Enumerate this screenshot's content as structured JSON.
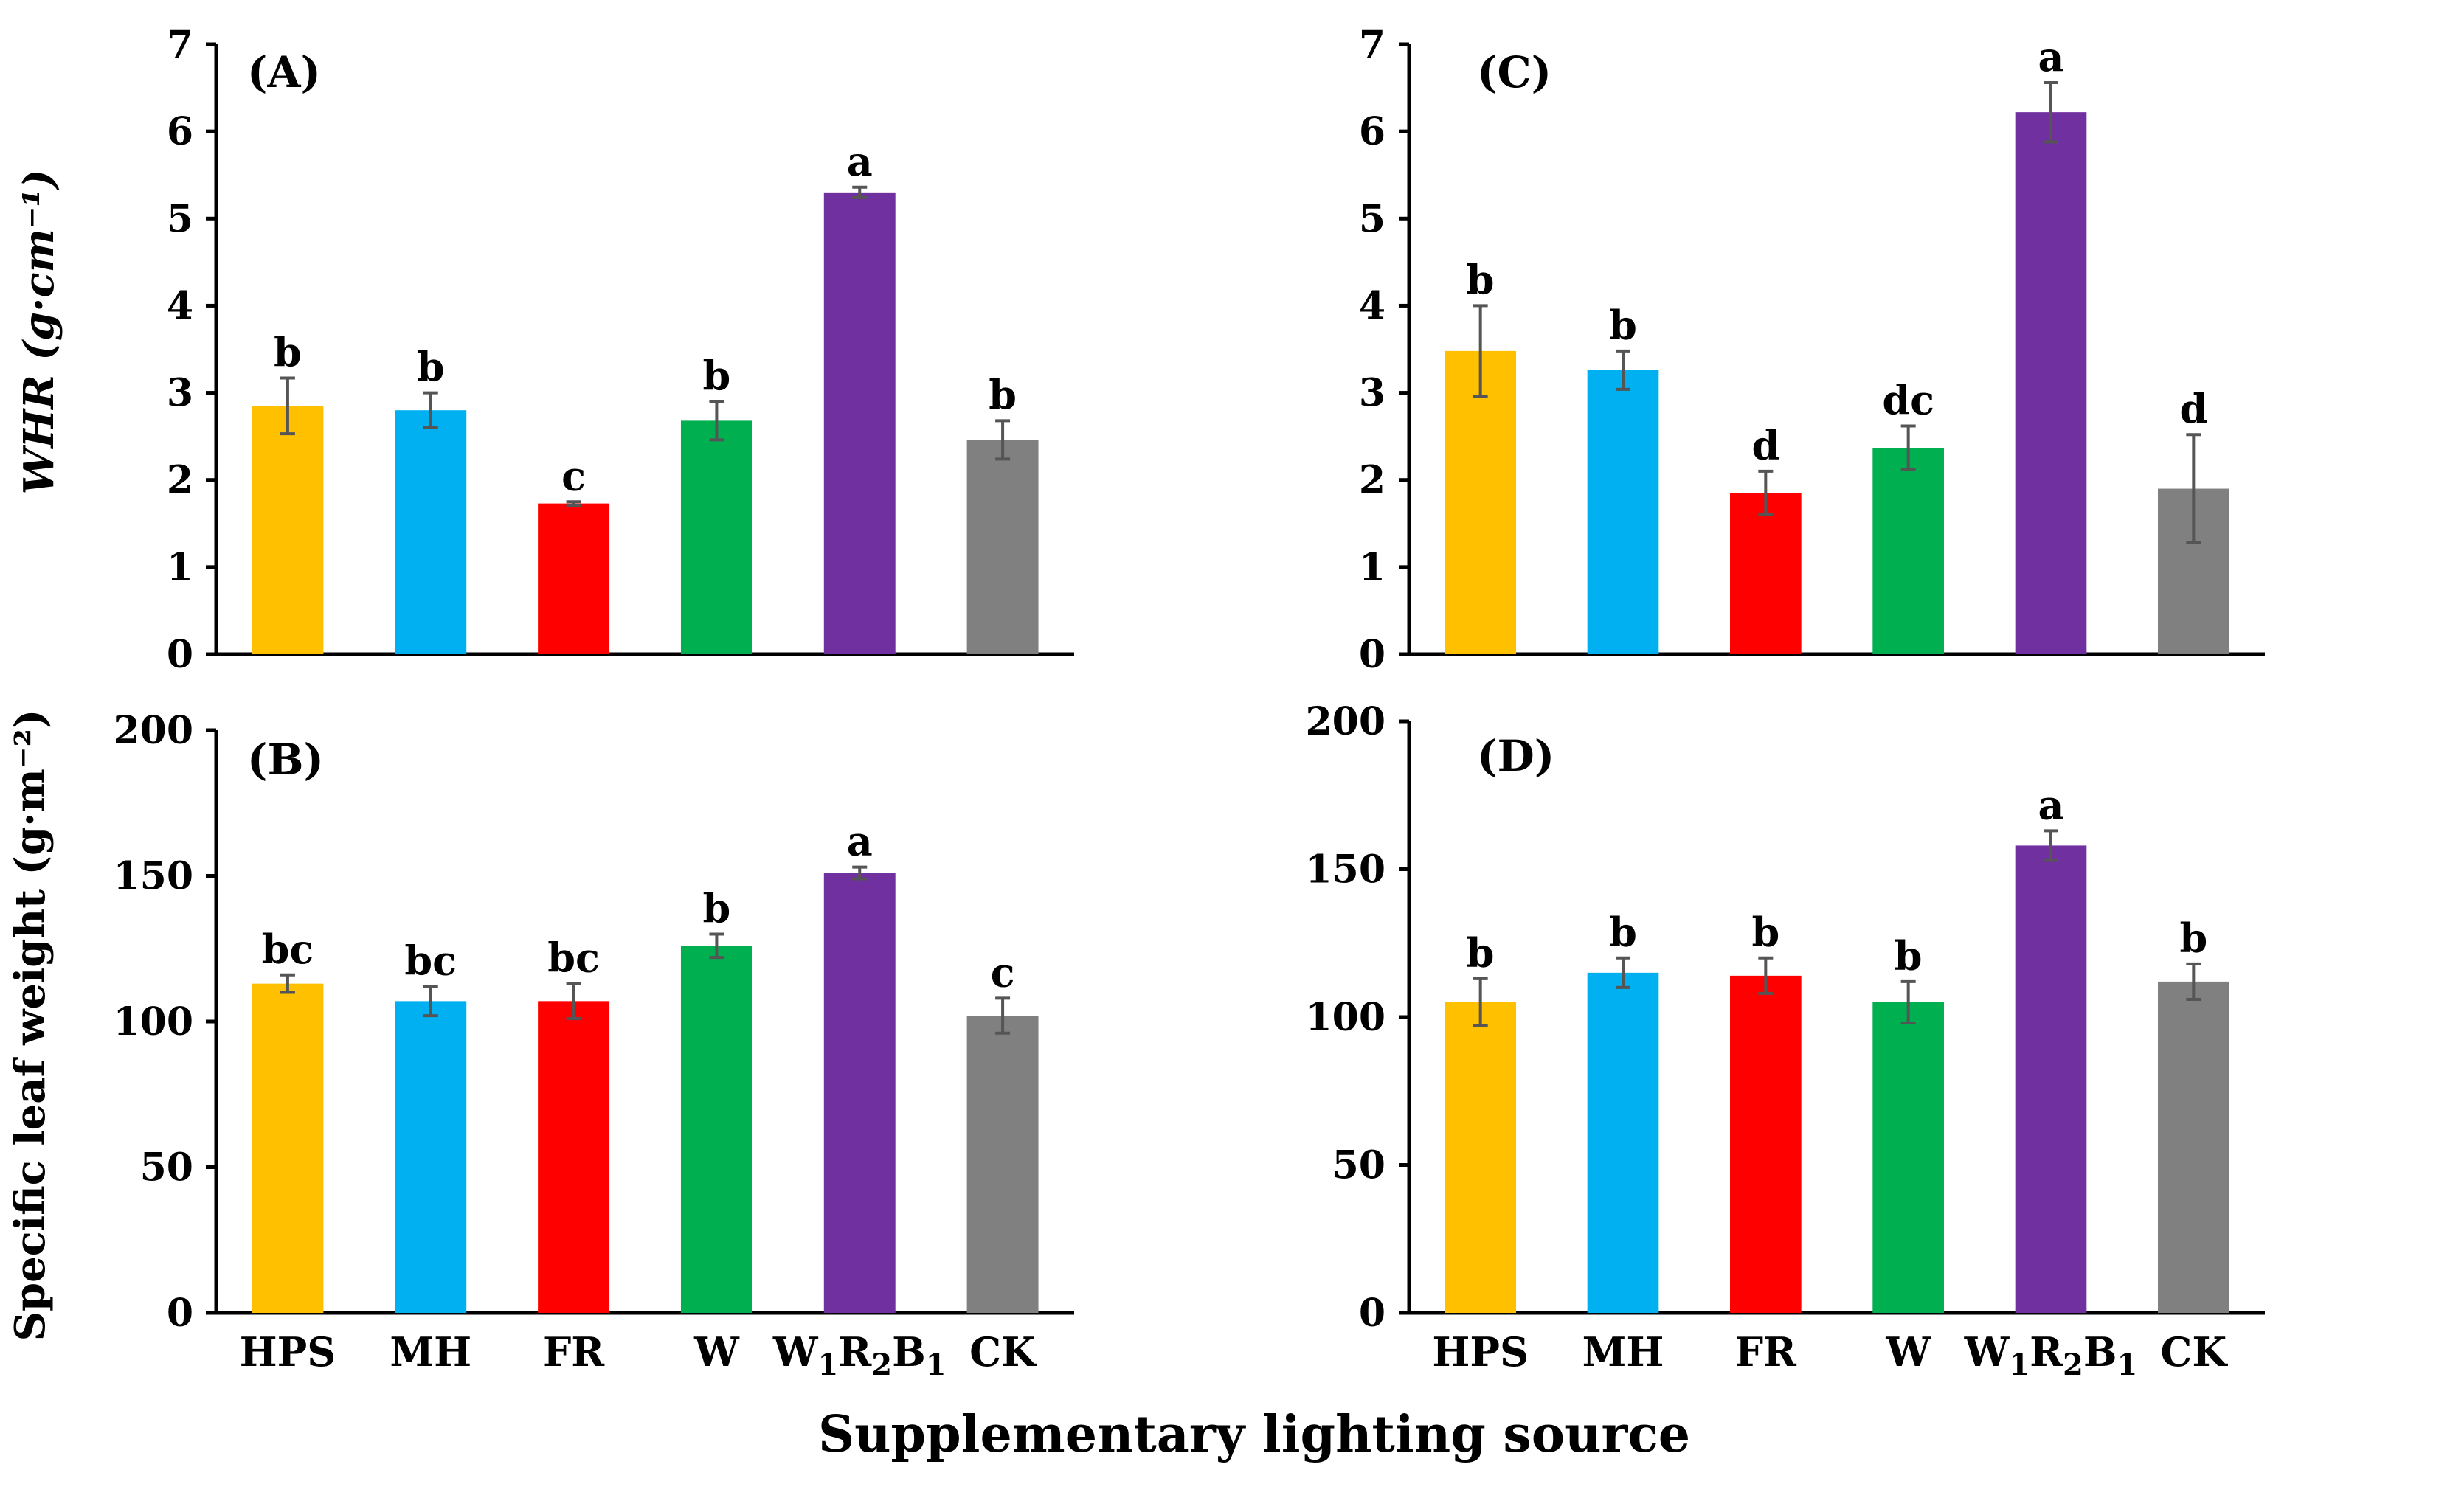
{
  "figure": {
    "xlabel": "Supplementary lighting source",
    "categories": [
      "HPS",
      "MH",
      "FR",
      "W",
      "W1R2B1",
      "CK"
    ],
    "colors": [
      "#FFC000",
      "#00B0F0",
      "#FF0000",
      "#00B050",
      "#7030A0",
      "#808080"
    ],
    "error_bar_color": "#555555"
  },
  "ylabels": {
    "top": "WHR (g·cm⁻¹)",
    "bottom": "Specific leaf weight (g·m⁻²)"
  },
  "chart_data": [
    {
      "panel": "(A)",
      "type": "bar",
      "categories": [
        "HPS",
        "MH",
        "FR",
        "W",
        "W1R2B1",
        "CK"
      ],
      "values": [
        2.85,
        2.8,
        1.73,
        2.68,
        5.3,
        2.46
      ],
      "errors": [
        0.32,
        0.2,
        0.02,
        0.22,
        0.06,
        0.22
      ],
      "letters": [
        "b",
        "b",
        "c",
        "b",
        "a",
        "b"
      ],
      "ylabel": "WHR (g·cm⁻¹)",
      "ylim": [
        0,
        7
      ],
      "yticks": [
        0,
        1,
        2,
        3,
        4,
        5,
        6,
        7
      ],
      "grid": false,
      "legend": "none"
    },
    {
      "panel": "(B)",
      "type": "bar",
      "categories": [
        "HPS",
        "MH",
        "FR",
        "W",
        "W1R2B1",
        "CK"
      ],
      "values": [
        113,
        107,
        107,
        126,
        151,
        102
      ],
      "errors": [
        3,
        5,
        6,
        4,
        2,
        6
      ],
      "letters": [
        "bc",
        "bc",
        "bc",
        "b",
        "a",
        "c"
      ],
      "ylabel": "Specific leaf weight (g·m⁻²)",
      "ylim": [
        0,
        200
      ],
      "yticks": [
        0,
        50,
        100,
        150,
        200
      ],
      "grid": false,
      "legend": "none"
    },
    {
      "panel": "(C)",
      "type": "bar",
      "categories": [
        "HPS",
        "MH",
        "FR",
        "W",
        "W1R2B1",
        "CK"
      ],
      "values": [
        3.48,
        3.26,
        1.85,
        2.37,
        6.22,
        1.9
      ],
      "errors": [
        0.52,
        0.22,
        0.25,
        0.25,
        0.34,
        0.62
      ],
      "letters": [
        "b",
        "b",
        "d",
        "dc",
        "a",
        "d"
      ],
      "ylim": [
        0,
        7
      ],
      "yticks": [
        0,
        1,
        2,
        3,
        4,
        5,
        6,
        7
      ],
      "grid": false,
      "legend": "none"
    },
    {
      "panel": "(D)",
      "type": "bar",
      "categories": [
        "HPS",
        "MH",
        "FR",
        "W",
        "W1R2B1",
        "CK"
      ],
      "values": [
        105,
        115,
        114,
        105,
        158,
        112
      ],
      "errors": [
        8,
        5,
        6,
        7,
        5,
        6
      ],
      "letters": [
        "b",
        "b",
        "b",
        "b",
        "a",
        "b"
      ],
      "ylim": [
        0,
        200
      ],
      "yticks": [
        0,
        50,
        100,
        150,
        200
      ],
      "grid": false,
      "legend": "none"
    }
  ]
}
